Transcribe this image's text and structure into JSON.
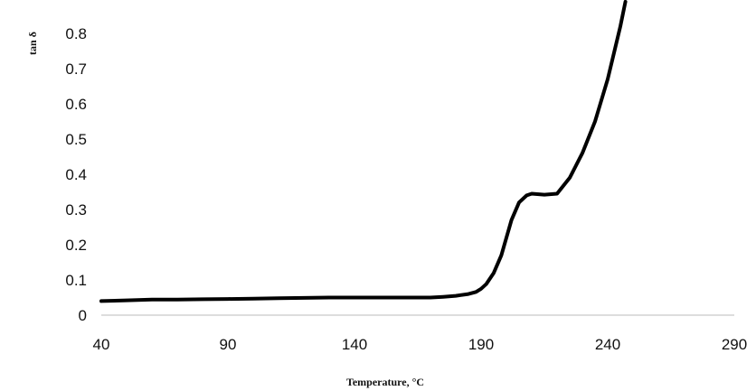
{
  "chart_data": {
    "type": "line",
    "title": "",
    "xlabel": "Temperature, °C",
    "ylabel": "tan δ",
    "xlim": [
      40,
      290
    ],
    "ylim": [
      0,
      0.85
    ],
    "x_ticks": [
      40,
      90,
      140,
      190,
      240,
      290
    ],
    "y_ticks": [
      0,
      0.1,
      0.2,
      0.3,
      0.4,
      0.5,
      0.6,
      0.7,
      0.8
    ],
    "y_tick_labels": [
      "0",
      "0.1",
      "0.2",
      "0.3",
      "0.4",
      "0.5",
      "0.6",
      "0.7",
      "0.8"
    ],
    "grid": false,
    "legend": "none",
    "series": [
      {
        "color": "#000000",
        "x": [
          40,
          50,
          60,
          70,
          80,
          90,
          100,
          110,
          120,
          130,
          140,
          150,
          160,
          170,
          175,
          180,
          185,
          188,
          190,
          192,
          195,
          198,
          200,
          202,
          205,
          208,
          210,
          215,
          220,
          225,
          230,
          235,
          240,
          243,
          245,
          247
        ],
        "y": [
          0.04,
          0.042,
          0.044,
          0.044,
          0.045,
          0.046,
          0.047,
          0.048,
          0.049,
          0.05,
          0.05,
          0.05,
          0.05,
          0.05,
          0.052,
          0.055,
          0.06,
          0.066,
          0.075,
          0.088,
          0.12,
          0.17,
          0.22,
          0.27,
          0.32,
          0.34,
          0.345,
          0.342,
          0.345,
          0.39,
          0.46,
          0.55,
          0.67,
          0.76,
          0.82,
          0.89
        ]
      }
    ]
  }
}
